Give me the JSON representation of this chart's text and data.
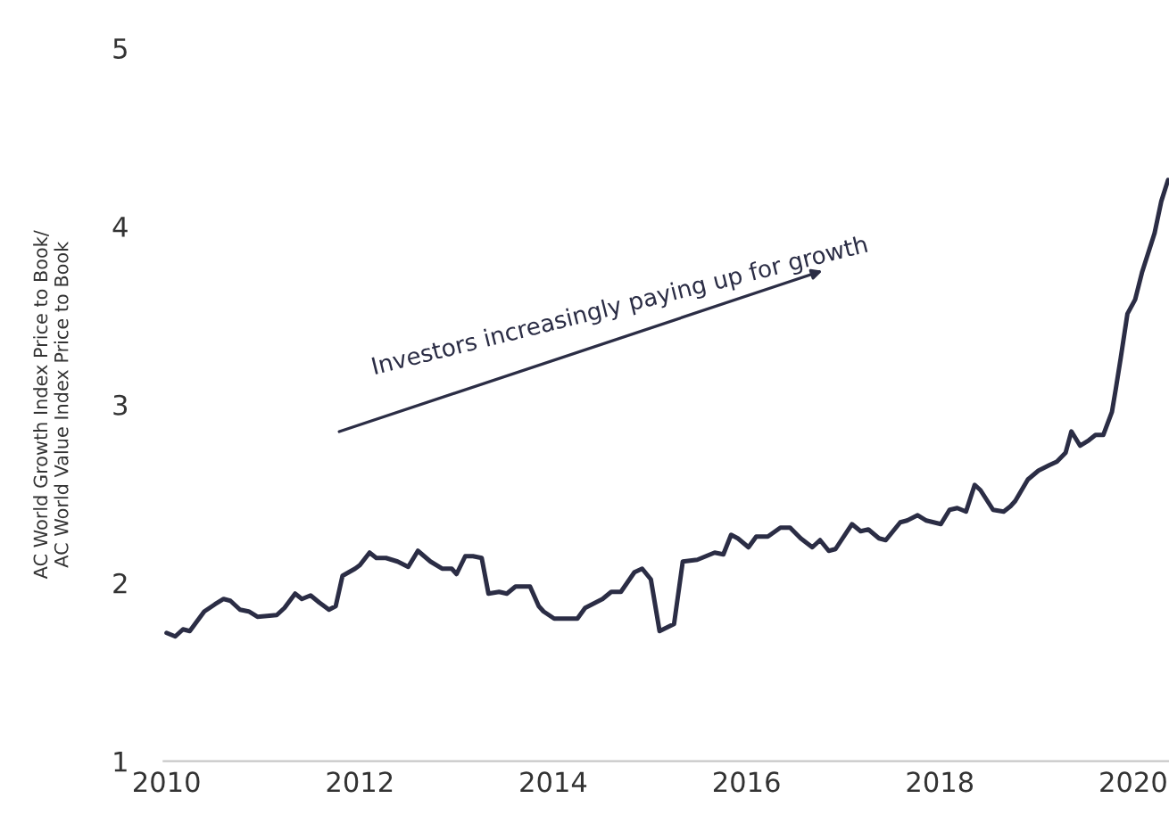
{
  "chart_data": {
    "type": "line",
    "ylabel": "AC World Growth Index Price to Book/\nAC World Value Index Price to Book",
    "annotations": [
      "Investors increasingly paying up for growth"
    ],
    "x": [
      2010.0,
      2010.09,
      2010.17,
      2010.24,
      2010.39,
      2010.5,
      2010.59,
      2010.66,
      2010.76,
      2010.85,
      2010.94,
      2011.14,
      2011.22,
      2011.33,
      2011.4,
      2011.49,
      2011.58,
      2011.68,
      2011.75,
      2011.82,
      2011.95,
      2012.0,
      2012.1,
      2012.17,
      2012.27,
      2012.39,
      2012.5,
      2012.6,
      2012.73,
      2012.85,
      2012.95,
      2013.0,
      2013.09,
      2013.17,
      2013.26,
      2013.33,
      2013.44,
      2013.52,
      2013.61,
      2013.76,
      2013.85,
      2013.9,
      2014.01,
      2014.25,
      2014.33,
      2014.51,
      2014.6,
      2014.7,
      2014.84,
      2014.92,
      2015.01,
      2015.1,
      2015.25,
      2015.34,
      2015.49,
      2015.67,
      2015.76,
      2015.84,
      2015.91,
      2016.02,
      2016.1,
      2016.22,
      2016.35,
      2016.45,
      2016.56,
      2016.68,
      2016.76,
      2016.85,
      2016.92,
      2017.09,
      2017.18,
      2017.26,
      2017.37,
      2017.44,
      2017.59,
      2017.66,
      2017.77,
      2017.86,
      2018.01,
      2018.1,
      2018.18,
      2018.27,
      2018.36,
      2018.42,
      2018.55,
      2018.66,
      2018.73,
      2018.78,
      2018.91,
      2019.02,
      2019.13,
      2019.21,
      2019.3,
      2019.36,
      2019.45,
      2019.54,
      2019.61,
      2019.69,
      2019.78,
      2019.82,
      2019.87,
      2019.94,
      2020.02,
      2020.09,
      2020.22,
      2020.29,
      2020.36
    ],
    "series": [
      {
        "color": "#2b2d45",
        "values": [
          1.72,
          1.7,
          1.74,
          1.73,
          1.84,
          1.88,
          1.91,
          1.9,
          1.85,
          1.84,
          1.81,
          1.82,
          1.86,
          1.94,
          1.91,
          1.93,
          1.89,
          1.85,
          1.87,
          2.04,
          2.08,
          2.1,
          2.17,
          2.14,
          2.14,
          2.12,
          2.09,
          2.18,
          2.12,
          2.08,
          2.08,
          2.05,
          2.15,
          2.15,
          2.14,
          1.94,
          1.95,
          1.94,
          1.98,
          1.98,
          1.87,
          1.84,
          1.8,
          1.8,
          1.86,
          1.91,
          1.95,
          1.95,
          2.06,
          2.08,
          2.02,
          1.73,
          1.77,
          2.12,
          2.13,
          2.17,
          2.16,
          2.27,
          2.25,
          2.2,
          2.26,
          2.26,
          2.31,
          2.31,
          2.25,
          2.2,
          2.24,
          2.18,
          2.19,
          2.33,
          2.29,
          2.3,
          2.25,
          2.24,
          2.34,
          2.35,
          2.38,
          2.35,
          2.33,
          2.41,
          2.42,
          2.4,
          2.55,
          2.52,
          2.41,
          2.4,
          2.43,
          2.46,
          2.58,
          2.63,
          2.66,
          2.68,
          2.73,
          2.85,
          2.77,
          2.8,
          2.83,
          2.83,
          2.96,
          3.09,
          3.26,
          3.51,
          3.59,
          3.74,
          3.96,
          4.14,
          4.26
        ]
      }
    ],
    "xlim": [
      2009.97,
      2020.37
    ],
    "ylim": [
      1,
      5
    ],
    "xticks": [
      2010,
      2012,
      2014,
      2016,
      2018,
      2020
    ],
    "yticks": [
      1,
      2,
      3,
      4,
      5
    ],
    "grid": false,
    "legend": false,
    "marker": "none",
    "line_style": "solid"
  }
}
